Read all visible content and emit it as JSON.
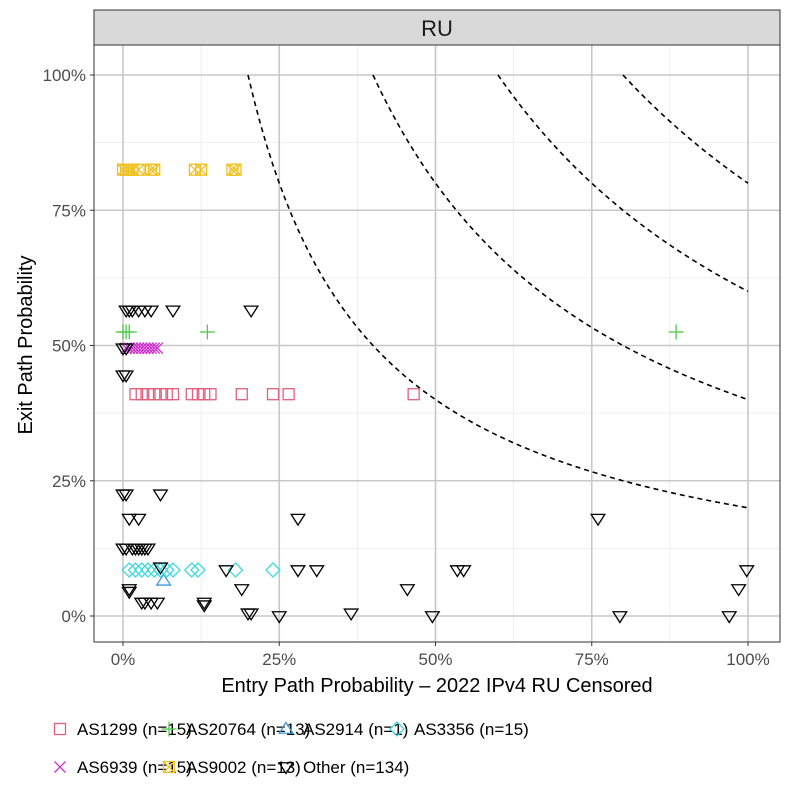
{
  "chart_data": {
    "type": "scatter",
    "facet_label": "RU",
    "xlabel": "Entry Path Probability – 2022 IPv4 RU Censored",
    "ylabel": "Exit Path Probability",
    "xlim": [
      -0.05,
      1.025
    ],
    "ylim": [
      -0.05,
      1.05
    ],
    "x_ticks": [
      0,
      0.25,
      0.5,
      0.75,
      1.0
    ],
    "x_tick_labels": [
      "0%",
      "25%",
      "50%",
      "75%",
      "100%"
    ],
    "y_ticks": [
      0,
      0.25,
      0.5,
      0.75,
      1.0
    ],
    "y_tick_labels": [
      "0%",
      "25%",
      "50%",
      "75%",
      "100%"
    ],
    "grid": true,
    "legend_position": "bottom",
    "contours": [
      {
        "product": 0.2,
        "x_range": [
          0.2,
          1.0
        ]
      },
      {
        "product": 0.4,
        "x_range": [
          0.4,
          1.0
        ]
      },
      {
        "product": 0.6,
        "x_range": [
          0.6,
          1.0
        ]
      },
      {
        "product": 0.8,
        "x_range": [
          0.8,
          1.0
        ]
      }
    ],
    "series": [
      {
        "name": "AS1299 (n=15)",
        "key": "as1299",
        "shape": "square",
        "color": "#e0607e",
        "points": [
          [
            0.02,
            0.41
          ],
          [
            0.03,
            0.41
          ],
          [
            0.04,
            0.41
          ],
          [
            0.05,
            0.41
          ],
          [
            0.06,
            0.41
          ],
          [
            0.07,
            0.41
          ],
          [
            0.08,
            0.41
          ],
          [
            0.11,
            0.41
          ],
          [
            0.12,
            0.41
          ],
          [
            0.13,
            0.41
          ],
          [
            0.14,
            0.41
          ],
          [
            0.19,
            0.41
          ],
          [
            0.24,
            0.41
          ],
          [
            0.265,
            0.41
          ],
          [
            0.465,
            0.41
          ]
        ]
      },
      {
        "name": "AS20764 (n=13)",
        "key": "as20764",
        "shape": "plus",
        "color": "#4dc94d",
        "points": [
          [
            0.0,
            0.525
          ],
          [
            0.005,
            0.525
          ],
          [
            0.01,
            0.525
          ],
          [
            0.135,
            0.525
          ],
          [
            0.885,
            0.525
          ]
        ]
      },
      {
        "name": "AS2914 (n=1)",
        "key": "as2914",
        "shape": "triangle-up",
        "color": "#3a9ad9",
        "points": [
          [
            0.065,
            0.065
          ]
        ]
      },
      {
        "name": "AS3356 (n=15)",
        "key": "as3356",
        "shape": "diamond",
        "color": "#3dd9e0",
        "points": [
          [
            0.01,
            0.085
          ],
          [
            0.02,
            0.085
          ],
          [
            0.03,
            0.085
          ],
          [
            0.04,
            0.085
          ],
          [
            0.05,
            0.085
          ],
          [
            0.06,
            0.085
          ],
          [
            0.07,
            0.085
          ],
          [
            0.08,
            0.085
          ],
          [
            0.11,
            0.085
          ],
          [
            0.12,
            0.085
          ],
          [
            0.18,
            0.085
          ],
          [
            0.24,
            0.085
          ]
        ]
      },
      {
        "name": "AS6939 (n=15)",
        "key": "as6939",
        "shape": "cross",
        "color": "#cc33cc",
        "points": [
          [
            0.005,
            0.495
          ],
          [
            0.01,
            0.495
          ],
          [
            0.015,
            0.495
          ],
          [
            0.02,
            0.495
          ],
          [
            0.025,
            0.495
          ],
          [
            0.03,
            0.495
          ],
          [
            0.035,
            0.495
          ],
          [
            0.04,
            0.495
          ],
          [
            0.045,
            0.495
          ],
          [
            0.05,
            0.495
          ],
          [
            0.055,
            0.495
          ]
        ]
      },
      {
        "name": "AS9002 (n=13)",
        "key": "as9002",
        "shape": "square-x",
        "color": "#f0c020",
        "points": [
          [
            0.0,
            0.825
          ],
          [
            0.005,
            0.825
          ],
          [
            0.01,
            0.825
          ],
          [
            0.015,
            0.825
          ],
          [
            0.025,
            0.825
          ],
          [
            0.045,
            0.825
          ],
          [
            0.05,
            0.825
          ],
          [
            0.115,
            0.825
          ],
          [
            0.125,
            0.825
          ],
          [
            0.175,
            0.825
          ],
          [
            0.18,
            0.825
          ]
        ]
      },
      {
        "name": "Other (n=134)",
        "key": "other",
        "shape": "triangle-down",
        "color": "#000000",
        "points": [
          [
            0.005,
            0.565
          ],
          [
            0.01,
            0.565
          ],
          [
            0.015,
            0.565
          ],
          [
            0.025,
            0.565
          ],
          [
            0.035,
            0.565
          ],
          [
            0.045,
            0.565
          ],
          [
            0.08,
            0.565
          ],
          [
            0.205,
            0.565
          ],
          [
            0.0,
            0.495
          ],
          [
            0.005,
            0.495
          ],
          [
            0.0,
            0.445
          ],
          [
            0.005,
            0.445
          ],
          [
            0.0,
            0.225
          ],
          [
            0.005,
            0.225
          ],
          [
            0.06,
            0.225
          ],
          [
            0.01,
            0.18
          ],
          [
            0.025,
            0.18
          ],
          [
            0.28,
            0.18
          ],
          [
            0.76,
            0.18
          ],
          [
            0.0,
            0.125
          ],
          [
            0.005,
            0.125
          ],
          [
            0.015,
            0.125
          ],
          [
            0.02,
            0.125
          ],
          [
            0.025,
            0.125
          ],
          [
            0.03,
            0.125
          ],
          [
            0.035,
            0.125
          ],
          [
            0.04,
            0.125
          ],
          [
            0.06,
            0.09
          ],
          [
            0.165,
            0.085
          ],
          [
            0.28,
            0.085
          ],
          [
            0.31,
            0.085
          ],
          [
            0.535,
            0.085
          ],
          [
            0.545,
            0.085
          ],
          [
            0.998,
            0.085
          ],
          [
            0.01,
            0.05
          ],
          [
            0.01,
            0.045
          ],
          [
            0.19,
            0.05
          ],
          [
            0.455,
            0.05
          ],
          [
            0.985,
            0.05
          ],
          [
            0.03,
            0.025
          ],
          [
            0.035,
            0.025
          ],
          [
            0.045,
            0.025
          ],
          [
            0.055,
            0.025
          ],
          [
            0.13,
            0.025
          ],
          [
            0.13,
            0.02
          ],
          [
            0.2,
            0.005
          ],
          [
            0.205,
            0.005
          ],
          [
            0.25,
            0.0
          ],
          [
            0.365,
            0.005
          ],
          [
            0.495,
            0.0
          ],
          [
            0.795,
            0.0
          ],
          [
            0.97,
            0.0
          ]
        ]
      }
    ]
  }
}
